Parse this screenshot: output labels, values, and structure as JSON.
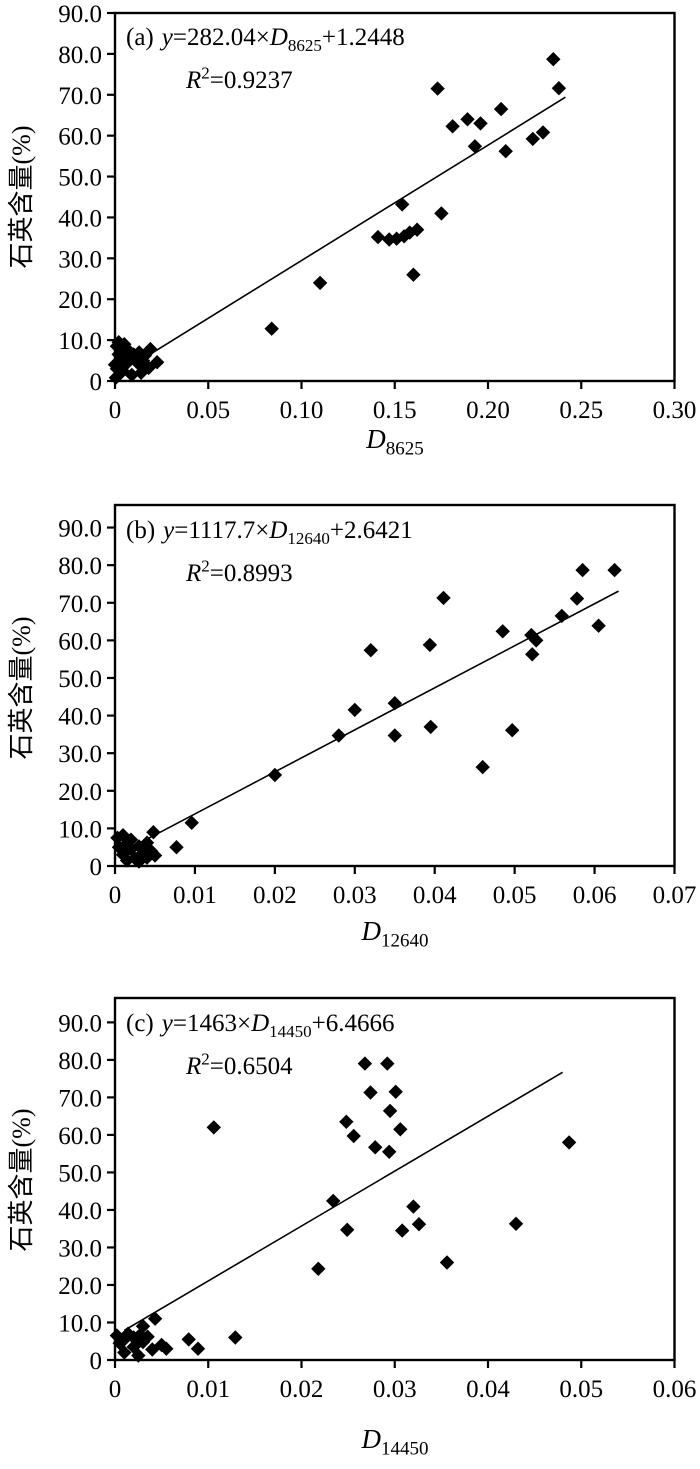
{
  "figure_caption_fonts_note": "scatter panels of quartz content vs absorption depth",
  "chart_data": [
    {
      "panel": "(a)",
      "type": "scatter",
      "marker": "diamond",
      "color": "#000000",
      "grid": false,
      "legend": null,
      "equation": {
        "panel": "(a)",
        "y": "y",
        "op": "=282.04×",
        "d": "D",
        "d_sub": "8625",
        "tail": "+1.2448"
      },
      "r_squared": {
        "base": "R",
        "sup": "2",
        "tail": "=0.9237"
      },
      "x_axis": {
        "d": "D",
        "sub": "8625"
      },
      "y_axis_label": "石英含量(%)",
      "xlim": [
        0,
        0.3
      ],
      "ylim": [
        0,
        90
      ],
      "frame_top_value": 90,
      "x_tick_values": [
        0,
        0.05,
        0.1,
        0.15,
        0.2,
        0.25,
        0.3
      ],
      "x_tick_labels": [
        "0",
        "0.05",
        "0.10",
        "0.15",
        "0.20",
        "0.25",
        "0.30"
      ],
      "y_tick_values": [
        90,
        80,
        70,
        60,
        50,
        40,
        30,
        20,
        10,
        0
      ],
      "y_tick_labels": [
        "90.0",
        "80.0",
        "70.0",
        "60.0",
        "50.0",
        "40.0",
        "30.0",
        "20.0",
        "10.0",
        "0"
      ],
      "trendline": {
        "x1": 0.019,
        "y1": 6.6,
        "x2": 0.2415,
        "y2": 69.4
      },
      "points": [
        [
          0.0,
          4.0
        ],
        [
          0.0005,
          0.8
        ],
        [
          0.001,
          8.5
        ],
        [
          0.001,
          3.0
        ],
        [
          0.002,
          6.5
        ],
        [
          0.002,
          1.5
        ],
        [
          0.002,
          9.5
        ],
        [
          0.003,
          5.0
        ],
        [
          0.004,
          8.0
        ],
        [
          0.004,
          2.5
        ],
        [
          0.005,
          6.0
        ],
        [
          0.005,
          9.0
        ],
        [
          0.006,
          4.2
        ],
        [
          0.007,
          7.5
        ],
        [
          0.008,
          5.5
        ],
        [
          0.009,
          1.5
        ],
        [
          0.01,
          6.5
        ],
        [
          0.012,
          4.5
        ],
        [
          0.013,
          7.0
        ],
        [
          0.014,
          2.0
        ],
        [
          0.015,
          5.0
        ],
        [
          0.016,
          6.2
        ],
        [
          0.018,
          3.2
        ],
        [
          0.019,
          7.8
        ],
        [
          0.0226,
          4.6
        ],
        [
          0.084,
          12.8
        ],
        [
          0.11,
          24.0
        ],
        [
          0.16,
          26.0
        ],
        [
          0.141,
          35.2
        ],
        [
          0.147,
          34.6
        ],
        [
          0.151,
          34.8
        ],
        [
          0.155,
          35.4
        ],
        [
          0.158,
          36.3
        ],
        [
          0.162,
          37.0
        ],
        [
          0.154,
          43.2
        ],
        [
          0.175,
          41.0
        ],
        [
          0.173,
          71.5
        ],
        [
          0.181,
          62.3
        ],
        [
          0.189,
          64.0
        ],
        [
          0.196,
          63.0
        ],
        [
          0.193,
          57.4
        ],
        [
          0.207,
          66.5
        ],
        [
          0.2095,
          56.2
        ],
        [
          0.224,
          59.2
        ],
        [
          0.2295,
          60.8
        ],
        [
          0.235,
          78.7
        ],
        [
          0.238,
          71.6
        ]
      ]
    },
    {
      "panel": "(b)",
      "type": "scatter",
      "marker": "diamond",
      "color": "#000000",
      "grid": false,
      "legend": null,
      "equation": {
        "panel": "(b)",
        "y": "y",
        "op": "=1117.7×",
        "d": "D",
        "d_sub": "12640",
        "tail": "+2.6421"
      },
      "r_squared": {
        "base": "R",
        "sup": "2",
        "tail": "=0.8993"
      },
      "x_axis": {
        "d": "D",
        "sub": "12640"
      },
      "y_axis_label": "石英含量(%)",
      "xlim": [
        0,
        0.07
      ],
      "ylim": [
        0,
        90
      ],
      "frame_top_value": 96,
      "x_tick_values": [
        0,
        0.01,
        0.02,
        0.03,
        0.04,
        0.05,
        0.06,
        0.07
      ],
      "x_tick_labels": [
        "0",
        "0.01",
        "0.02",
        "0.03",
        "0.04",
        "0.05",
        "0.06",
        "0.07"
      ],
      "y_tick_values": [
        90,
        80,
        70,
        60,
        50,
        40,
        30,
        20,
        10,
        0
      ],
      "y_tick_labels": [
        "90.0",
        "80.0",
        "70.0",
        "60.0",
        "50.0",
        "40.0",
        "30.0",
        "20.0",
        "10.0",
        "0"
      ],
      "trendline": {
        "x1": 0.002,
        "y1": 4.9,
        "x2": 0.063,
        "y2": 73.1
      },
      "points": [
        [
          0.0003,
          7.5
        ],
        [
          0.0005,
          5.0
        ],
        [
          0.001,
          8.2
        ],
        [
          0.001,
          3.0
        ],
        [
          0.0015,
          6.0
        ],
        [
          0.0015,
          1.5
        ],
        [
          0.002,
          4.5
        ],
        [
          0.002,
          7.0
        ],
        [
          0.0025,
          2.0
        ],
        [
          0.003,
          5.2
        ],
        [
          0.003,
          1.2
        ],
        [
          0.0035,
          3.5
        ],
        [
          0.004,
          6.2
        ],
        [
          0.004,
          2.2
        ],
        [
          0.0045,
          4.0
        ],
        [
          0.005,
          2.8
        ],
        [
          0.0048,
          9.0
        ],
        [
          0.0077,
          5.0
        ],
        [
          0.0096,
          11.5
        ],
        [
          0.02,
          24.2
        ],
        [
          0.028,
          34.7
        ],
        [
          0.03,
          41.5
        ],
        [
          0.032,
          57.4
        ],
        [
          0.035,
          43.3
        ],
        [
          0.035,
          34.7
        ],
        [
          0.0395,
          37.0
        ],
        [
          0.0394,
          58.8
        ],
        [
          0.0411,
          71.3
        ],
        [
          0.046,
          26.3
        ],
        [
          0.0485,
          62.4
        ],
        [
          0.0497,
          36.1
        ],
        [
          0.0521,
          61.4
        ],
        [
          0.0527,
          60.0
        ],
        [
          0.0522,
          56.3
        ],
        [
          0.0559,
          66.5
        ],
        [
          0.0578,
          71.1
        ],
        [
          0.0585,
          78.7
        ],
        [
          0.0605,
          63.9
        ],
        [
          0.0625,
          78.7
        ]
      ]
    },
    {
      "panel": "(c)",
      "type": "scatter",
      "marker": "diamond",
      "color": "#000000",
      "grid": false,
      "legend": null,
      "equation": {
        "panel": "(c)",
        "y": "y",
        "op": "=1463×",
        "d": "D",
        "d_sub": "14450",
        "tail": "+6.4666"
      },
      "r_squared": {
        "base": "R",
        "sup": "2",
        "tail": "=0.6504"
      },
      "x_axis": {
        "d": "D",
        "sub": "14450"
      },
      "y_axis_label": "石英含量(%)",
      "xlim": [
        0,
        0.06
      ],
      "ylim": [
        0,
        90
      ],
      "frame_top_value": 96.5,
      "x_tick_values": [
        0,
        0.01,
        0.02,
        0.03,
        0.04,
        0.05,
        0.06
      ],
      "x_tick_labels": [
        "0",
        "0.01",
        "0.02",
        "0.03",
        "0.04",
        "0.05",
        "0.06"
      ],
      "y_tick_values": [
        90,
        80,
        70,
        60,
        50,
        40,
        30,
        20,
        10,
        0
      ],
      "y_tick_labels": [
        "90.0",
        "80.0",
        "70.0",
        "60.0",
        "50.0",
        "40.0",
        "30.0",
        "20.0",
        "10.0",
        "0"
      ],
      "trendline": {
        "x1": 0.001,
        "y1": 7.9,
        "x2": 0.048,
        "y2": 76.7
      },
      "points": [
        [
          0.0002,
          6.5
        ],
        [
          0.0005,
          4.5
        ],
        [
          0.001,
          2.0
        ],
        [
          0.001,
          5.5
        ],
        [
          0.0014,
          7.0
        ],
        [
          0.002,
          3.5
        ],
        [
          0.002,
          6.0
        ],
        [
          0.0025,
          1.2
        ],
        [
          0.0027,
          6.7
        ],
        [
          0.003,
          4.8
        ],
        [
          0.003,
          9.0
        ],
        [
          0.0035,
          6.2
        ],
        [
          0.004,
          2.8
        ],
        [
          0.0043,
          11.0
        ],
        [
          0.005,
          4.0
        ],
        [
          0.0055,
          3.0
        ],
        [
          0.0079,
          5.5
        ],
        [
          0.0089,
          3.0
        ],
        [
          0.0106,
          62.0
        ],
        [
          0.0129,
          6.0
        ],
        [
          0.0218,
          24.3
        ],
        [
          0.0234,
          42.4
        ],
        [
          0.0248,
          63.5
        ],
        [
          0.0249,
          34.7
        ],
        [
          0.0256,
          59.7
        ],
        [
          0.0268,
          79.0
        ],
        [
          0.0274,
          71.3
        ],
        [
          0.0279,
          56.7
        ],
        [
          0.0292,
          79.0
        ],
        [
          0.0294,
          55.5
        ],
        [
          0.0295,
          66.4
        ],
        [
          0.0301,
          71.5
        ],
        [
          0.0306,
          61.5
        ],
        [
          0.0308,
          34.5
        ],
        [
          0.032,
          40.9
        ],
        [
          0.0326,
          36.2
        ],
        [
          0.0356,
          26.0
        ],
        [
          0.043,
          36.3
        ],
        [
          0.0487,
          58.0
        ]
      ]
    }
  ]
}
